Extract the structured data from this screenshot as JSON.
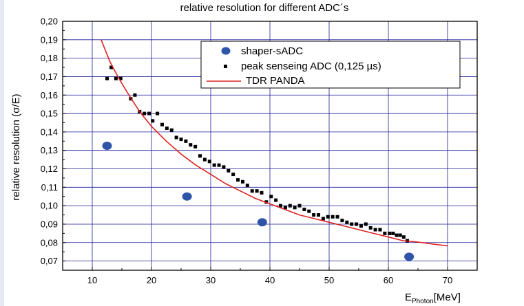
{
  "chart_data": {
    "type": "scatter",
    "title": "relative resolution for different ADC´s",
    "ylabel": "relative resolution (σ/E)",
    "xlabel": {
      "main": "E",
      "sub": "Photon",
      "unit": "[MeV]"
    },
    "xlim": [
      5,
      75
    ],
    "ylim": [
      0.065,
      0.2
    ],
    "x_ticks": [
      10,
      20,
      30,
      40,
      50,
      60,
      70
    ],
    "x_tick_labels": [
      "10",
      "20",
      "30",
      "40",
      "50",
      "60",
      "70"
    ],
    "y_ticks": [
      0.07,
      0.08,
      0.09,
      0.1,
      0.11,
      0.12,
      0.13,
      0.14,
      0.15,
      0.16,
      0.17,
      0.18,
      0.19,
      0.2
    ],
    "y_tick_labels": [
      "0,07",
      "0,08",
      "0,09",
      "0,10",
      "0,11",
      "0,12",
      "0,13",
      "0,14",
      "0,15",
      "0,16",
      "0,17",
      "0,18",
      "0,19",
      "0,20"
    ],
    "grid": true,
    "legend_position": "top-right",
    "series": [
      {
        "name": "shaper-sADC",
        "kind": "scatter-ellipse",
        "color": "#2f55a8",
        "points": [
          [
            12.5,
            0.1325
          ],
          [
            26.0,
            0.105
          ],
          [
            38.7,
            0.091
          ],
          [
            63.5,
            0.0723
          ]
        ]
      },
      {
        "name": "peak senseing ADC (0,125 µs)",
        "kind": "scatter-square",
        "color": "#000000",
        "points": [
          [
            12.5,
            0.169
          ],
          [
            13.2,
            0.175
          ],
          [
            14.0,
            0.169
          ],
          [
            14.8,
            0.169
          ],
          [
            16.5,
            0.158
          ],
          [
            17.2,
            0.16
          ],
          [
            18.0,
            0.151
          ],
          [
            18.8,
            0.15
          ],
          [
            19.6,
            0.15
          ],
          [
            20.2,
            0.146
          ],
          [
            21.0,
            0.15
          ],
          [
            21.8,
            0.144
          ],
          [
            22.6,
            0.142
          ],
          [
            23.4,
            0.141
          ],
          [
            24.2,
            0.137
          ],
          [
            25.0,
            0.136
          ],
          [
            25.8,
            0.135
          ],
          [
            26.6,
            0.133
          ],
          [
            27.4,
            0.132
          ],
          [
            28.2,
            0.127
          ],
          [
            29.0,
            0.125
          ],
          [
            29.8,
            0.124
          ],
          [
            30.6,
            0.122
          ],
          [
            31.4,
            0.122
          ],
          [
            32.2,
            0.121
          ],
          [
            33.0,
            0.119
          ],
          [
            33.8,
            0.117
          ],
          [
            34.6,
            0.114
          ],
          [
            35.4,
            0.113
          ],
          [
            36.2,
            0.111
          ],
          [
            37.0,
            0.108
          ],
          [
            37.8,
            0.108
          ],
          [
            38.6,
            0.107
          ],
          [
            39.4,
            0.102
          ],
          [
            40.2,
            0.105
          ],
          [
            41.0,
            0.103
          ],
          [
            41.8,
            0.1
          ],
          [
            42.6,
            0.099
          ],
          [
            43.4,
            0.1
          ],
          [
            44.2,
            0.099
          ],
          [
            45.0,
            0.1
          ],
          [
            45.8,
            0.098
          ],
          [
            46.6,
            0.097
          ],
          [
            47.4,
            0.095
          ],
          [
            48.2,
            0.095
          ],
          [
            49.0,
            0.093
          ],
          [
            49.8,
            0.094
          ],
          [
            50.6,
            0.094
          ],
          [
            51.4,
            0.094
          ],
          [
            52.2,
            0.092
          ],
          [
            53.0,
            0.091
          ],
          [
            53.8,
            0.09
          ],
          [
            54.6,
            0.09
          ],
          [
            55.4,
            0.089
          ],
          [
            56.2,
            0.09
          ],
          [
            57.0,
            0.088
          ],
          [
            57.8,
            0.087
          ],
          [
            58.6,
            0.087
          ],
          [
            59.4,
            0.085
          ],
          [
            60.2,
            0.085
          ],
          [
            60.8,
            0.085
          ],
          [
            61.4,
            0.084
          ],
          [
            62.0,
            0.084
          ],
          [
            62.6,
            0.083
          ],
          [
            63.2,
            0.081
          ]
        ]
      },
      {
        "name": "TDR PANDA",
        "kind": "line",
        "color": "#e0201e",
        "points": [
          [
            11.5,
            0.19
          ],
          [
            13.0,
            0.178
          ],
          [
            14.5,
            0.169
          ],
          [
            16.0,
            0.161
          ],
          [
            18.0,
            0.151
          ],
          [
            20.0,
            0.143
          ],
          [
            22.5,
            0.135
          ],
          [
            25.0,
            0.128
          ],
          [
            27.5,
            0.122
          ],
          [
            30.0,
            0.117
          ],
          [
            32.5,
            0.112
          ],
          [
            35.0,
            0.108
          ],
          [
            37.5,
            0.104
          ],
          [
            40.0,
            0.101
          ],
          [
            42.5,
            0.098
          ],
          [
            45.0,
            0.095
          ],
          [
            47.5,
            0.093
          ],
          [
            50.0,
            0.091
          ],
          [
            52.5,
            0.089
          ],
          [
            55.0,
            0.087
          ],
          [
            57.5,
            0.085
          ],
          [
            60.0,
            0.083
          ],
          [
            62.5,
            0.081
          ],
          [
            65.0,
            0.0803
          ],
          [
            67.5,
            0.0792
          ],
          [
            70.0,
            0.0782
          ]
        ]
      }
    ]
  }
}
